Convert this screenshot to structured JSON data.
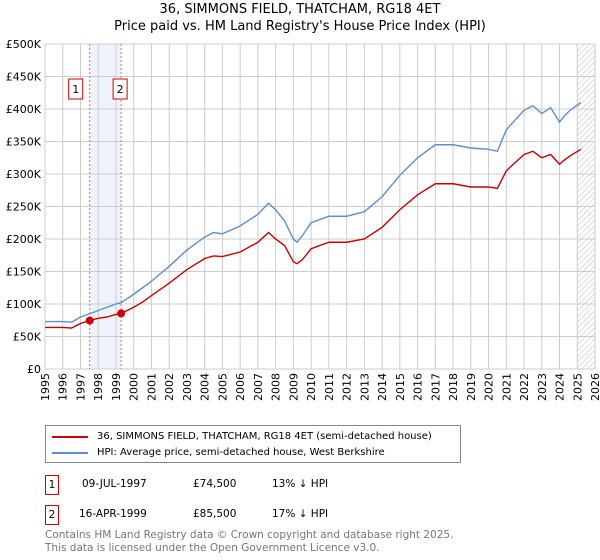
{
  "title": "36, SIMMONS FIELD, THATCHAM, RG18 4ET",
  "subtitle": "Price paid vs. HM Land Registry's House Price Index (HPI)",
  "chart_data": {
    "type": "line",
    "title": "36, SIMMONS FIELD, THATCHAM, RG18 4ET",
    "subtitle": "Price paid vs. HM Land Registry's House Price Index (HPI)",
    "xlim": [
      1995,
      2026
    ],
    "ylim": [
      0,
      500000
    ],
    "x_ticks": [
      "1995",
      "1996",
      "1997",
      "1998",
      "1999",
      "2000",
      "2001",
      "2002",
      "2003",
      "2004",
      "2005",
      "2006",
      "2007",
      "2008",
      "2009",
      "2010",
      "2011",
      "2012",
      "2013",
      "2014",
      "2015",
      "2016",
      "2017",
      "2018",
      "2019",
      "2020",
      "2021",
      "2022",
      "2023",
      "2024",
      "2025",
      "2026"
    ],
    "y_ticks": [
      {
        "v": 0,
        "label": "£0"
      },
      {
        "v": 50000,
        "label": "£50K"
      },
      {
        "v": 100000,
        "label": "£100K"
      },
      {
        "v": 150000,
        "label": "£150K"
      },
      {
        "v": 200000,
        "label": "£200K"
      },
      {
        "v": 250000,
        "label": "£250K"
      },
      {
        "v": 300000,
        "label": "£300K"
      },
      {
        "v": 350000,
        "label": "£350K"
      },
      {
        "v": 400000,
        "label": "£400K"
      },
      {
        "v": 450000,
        "label": "£450K"
      },
      {
        "v": 500000,
        "label": "£500K"
      }
    ],
    "grid": true,
    "series": [
      {
        "name": "36, SIMMONS FIELD, THATCHAM, RG18 4ET (semi-detached house)",
        "color": "#cc0000",
        "x": [
          1995,
          1996,
          1996.5,
          1997,
          1997.52,
          1998,
          1998.5,
          1999,
          1999.29,
          2000,
          2000.5,
          2001,
          2002,
          2003,
          2004,
          2004.5,
          2005,
          2006,
          2007,
          2007.6,
          2008,
          2008.5,
          2009,
          2009.2,
          2009.5,
          2010,
          2011,
          2012,
          2013,
          2014,
          2015,
          2016,
          2017,
          2018,
          2019,
          2020,
          2020.5,
          2021,
          2022,
          2022.5,
          2023,
          2023.5,
          2024,
          2024.3,
          2024.6,
          2025.2
        ],
        "y": [
          64000,
          64000,
          63000,
          70000,
          74500,
          78000,
          80000,
          84000,
          85500,
          95000,
          103000,
          113000,
          132000,
          153000,
          170000,
          174000,
          173000,
          180000,
          195000,
          210000,
          200000,
          190000,
          165000,
          162000,
          168000,
          185000,
          195000,
          195000,
          200000,
          218000,
          245000,
          268000,
          285000,
          285000,
          280000,
          280000,
          278000,
          305000,
          330000,
          335000,
          325000,
          330000,
          315000,
          322000,
          328000,
          338000
        ]
      },
      {
        "name": "HPI: Average price, semi-detached house, West Berkshire",
        "color": "#5b8fd0",
        "x": [
          1995,
          1996,
          1996.5,
          1997,
          1997.52,
          1998,
          1998.5,
          1999,
          1999.29,
          2000,
          2000.5,
          2001,
          2002,
          2003,
          2004,
          2004.5,
          2005,
          2006,
          2007,
          2007.6,
          2008,
          2008.5,
          2009,
          2009.2,
          2009.5,
          2010,
          2011,
          2012,
          2013,
          2014,
          2015,
          2016,
          2017,
          2018,
          2019,
          2020,
          2020.5,
          2021,
          2022,
          2022.5,
          2023,
          2023.5,
          2024,
          2024.3,
          2024.6,
          2025.2
        ],
        "y": [
          73000,
          73000,
          72000,
          80000,
          85000,
          90000,
          95000,
          100000,
          102000,
          115000,
          125000,
          135000,
          158000,
          183000,
          203000,
          210000,
          208000,
          220000,
          238000,
          255000,
          245000,
          228000,
          200000,
          195000,
          205000,
          225000,
          235000,
          235000,
          242000,
          265000,
          298000,
          325000,
          345000,
          345000,
          340000,
          338000,
          335000,
          368000,
          398000,
          405000,
          393000,
          402000,
          380000,
          390000,
          398000,
          410000
        ]
      }
    ],
    "sales": [
      {
        "n": "1",
        "x": 1997.52,
        "y": 74500
      },
      {
        "n": "2",
        "x": 1999.29,
        "y": 85500
      }
    ],
    "legend_position": "bottom"
  },
  "legend": [
    "36, SIMMONS FIELD, THATCHAM, RG18 4ET (semi-detached house)",
    "HPI: Average price, semi-detached house, West Berkshire"
  ],
  "table": [
    {
      "n": "1",
      "date": "09-JUL-1997",
      "price": "£74,500",
      "diff": "13% ↓ HPI"
    },
    {
      "n": "2",
      "date": "16-APR-1999",
      "price": "£85,500",
      "diff": "17% ↓ HPI"
    }
  ],
  "footer": [
    "Contains HM Land Registry data © Crown copyright and database right 2025.",
    "This data is licensed under the Open Government Licence v3.0."
  ]
}
